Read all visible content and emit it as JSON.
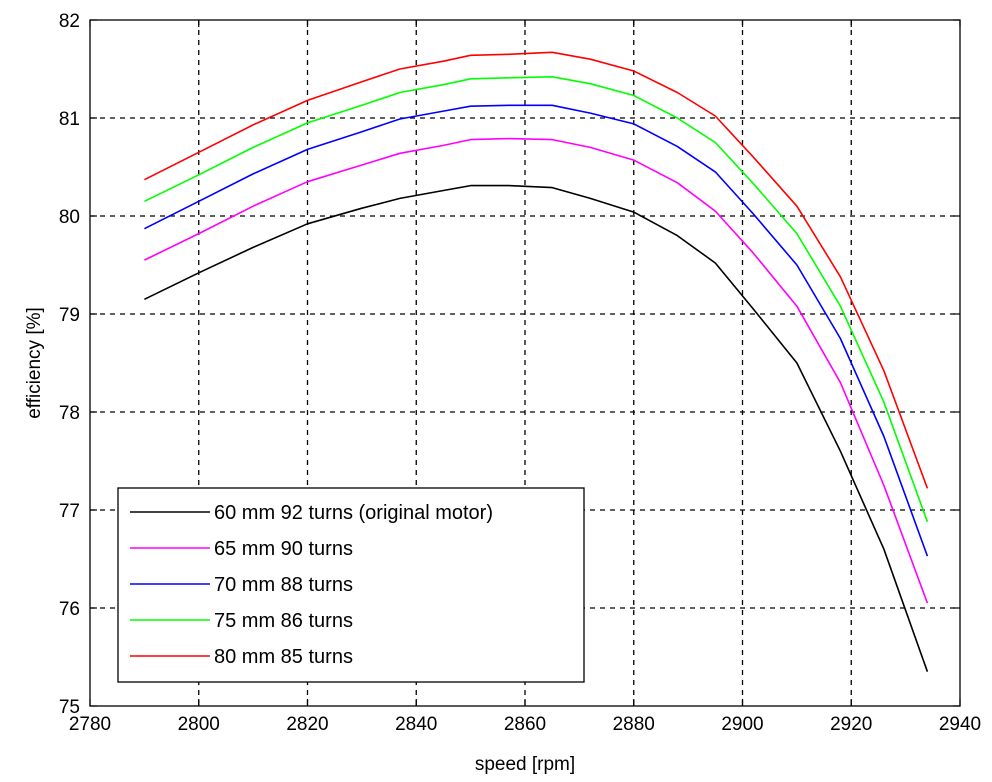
{
  "chart_data": {
    "type": "line",
    "title": "",
    "xlabel": "speed [rpm]",
    "ylabel": "efficiency [%]",
    "xlim": [
      2780,
      2940
    ],
    "ylim": [
      75,
      82
    ],
    "xticks": [
      2780,
      2800,
      2820,
      2840,
      2860,
      2880,
      2900,
      2920,
      2940
    ],
    "yticks": [
      75,
      76,
      77,
      78,
      79,
      80,
      81,
      82
    ],
    "grid": true,
    "legend_position": "bottom-left",
    "x": [
      2790,
      2800,
      2810,
      2820,
      2830,
      2837,
      2845,
      2850,
      2857,
      2865,
      2872,
      2880,
      2888,
      2895,
      2902,
      2910,
      2918,
      2926,
      2934
    ],
    "series": [
      {
        "name": "60 mm 92 turns (original motor)",
        "color": "#000000",
        "values": [
          79.15,
          79.42,
          79.68,
          79.92,
          80.08,
          80.18,
          80.26,
          80.31,
          80.31,
          80.29,
          80.18,
          80.04,
          79.8,
          79.52,
          79.05,
          78.5,
          77.6,
          76.6,
          75.35
        ]
      },
      {
        "name": "65 mm 90 turns",
        "color": "#ff00ff",
        "values": [
          79.55,
          79.82,
          80.1,
          80.35,
          80.52,
          80.64,
          80.72,
          80.78,
          80.79,
          80.78,
          80.7,
          80.57,
          80.34,
          80.05,
          79.62,
          79.08,
          78.3,
          77.25,
          76.05
        ]
      },
      {
        "name": "70 mm 88 turns",
        "color": "#0000ff",
        "values": [
          79.87,
          80.15,
          80.43,
          80.68,
          80.86,
          80.99,
          81.07,
          81.12,
          81.13,
          81.13,
          81.05,
          80.94,
          80.71,
          80.45,
          80.02,
          79.5,
          78.75,
          77.75,
          76.53
        ]
      },
      {
        "name": "75 mm 86 turns",
        "color": "#00ff00",
        "values": [
          80.15,
          80.42,
          80.7,
          80.95,
          81.13,
          81.26,
          81.34,
          81.4,
          81.41,
          81.42,
          81.35,
          81.23,
          81.0,
          80.75,
          80.33,
          79.82,
          79.08,
          78.1,
          76.88
        ]
      },
      {
        "name": "80 mm 85 turns",
        "color": "#ff0000",
        "values": [
          80.37,
          80.65,
          80.93,
          81.18,
          81.37,
          81.5,
          81.58,
          81.64,
          81.65,
          81.67,
          81.6,
          81.48,
          81.26,
          81.02,
          80.6,
          80.1,
          79.38,
          78.42,
          77.22
        ]
      }
    ]
  }
}
